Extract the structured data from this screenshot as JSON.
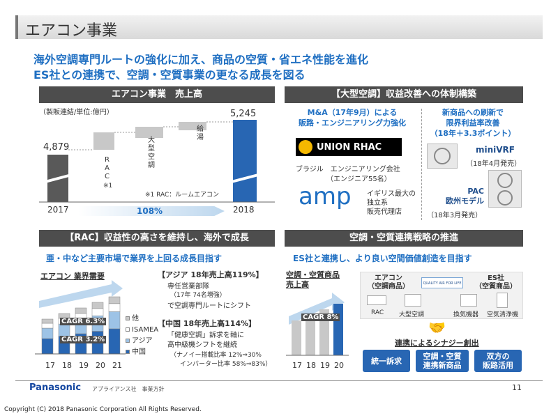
{
  "title": "エアコン事業",
  "headline": {
    "line1": "海外空調専門ルートの強化に加え、商品の空質・省エネ性能を進化",
    "line2": "ES社との連携で、空調・空質事業の更なる成長を図る"
  },
  "sales_panel": {
    "header": "エアコン事業　売上高",
    "unit": "（製販連結/単位:億円）",
    "labels": {
      "rac": "R\nA\nC",
      "rac_note_mark": "※1",
      "large": "大\n型\n空\n調",
      "kyuto": "給\n湯",
      "footnote": "※1 RAC：ルームエアコン",
      "growth": "108%"
    },
    "chart_data": {
      "type": "bar",
      "categories": [
        "2017",
        "2018"
      ],
      "values": [
        4879,
        5245
      ],
      "value_labels": [
        "4,879",
        "5,245"
      ],
      "colors": {
        "2017": "#595959",
        "2018": "#2866b3",
        "step": "#c8c8c8"
      }
    }
  },
  "large_ac_panel": {
    "header": "【大型空調】収益改善への体制構築",
    "ma_title": "M&A（17年9月）による\n販路・エンジニアリング力強化",
    "union_logo": "UNION RHAC",
    "union_desc": "ブラジル　エンジニアリング会社",
    "union_sub": "（エンジニア55名）",
    "amp_logo": "amp",
    "amp_desc": "イギリス最大の\n独立系\n販売代理店",
    "new_title": "新商品への刷新で\n限界利益率改善\n（18年＋3.3ポイント）",
    "minivrf": "miniVRF",
    "minivrf_date": "（18年4月発売）",
    "pac": "PAC\n欧州モデル",
    "pac_date": "（18年3月発売）"
  },
  "rac_panel": {
    "header": "【RAC】収益性の高さを維持し、海外で成長",
    "subtitle": "亜・中など主要市場で業界を上回る成長目指す",
    "demand_title": "エアコン 業界需要",
    "cagr1": "CAGR 6.3%",
    "cagr2": "CAGR 3.2%",
    "legend": [
      "他",
      "ISAMEA",
      "アジア",
      "中国"
    ],
    "legend_colors": [
      "#c8c8c8",
      "#ffffff",
      "#9dc3e6",
      "#2866b3"
    ],
    "chart_data": {
      "type": "bar",
      "categories": [
        "17",
        "18",
        "19",
        "20",
        "21"
      ]
    },
    "asia_title": "【アジア 18年売上高119%】",
    "asia_l1": "専任営業部隊",
    "asia_l2": "（17年 74名増強）",
    "asia_l3": "で空調専門ルートにシフト",
    "china_title": "【中国 18年売上高114%】",
    "china_l1": "「健康空調」訴求を軸に",
    "china_l2": "高中級機シフトを継続",
    "china_l3": "（ナノイー搭載比率 12%⇒30%",
    "china_l4": "インバーター比率 58%⇒83%）"
  },
  "strategy_panel": {
    "header": "空調・空質連携戦略の推進",
    "subtitle": "ES社と連携し、より良い空間価値創造を目指す",
    "sales_title": "空調・空質商品\n売上高",
    "cagr": "CAGR 8%",
    "chart_data": {
      "type": "bar",
      "categories": [
        "17",
        "18",
        "19",
        "20"
      ]
    },
    "aircon_box": "エアコン\n（空調商品）",
    "qa_logo": "QUALITY AIR FOR LIFE",
    "es_box": "ES社\n（空質商品）",
    "items": [
      "RAC",
      "大型空調",
      "換気機器",
      "空気清浄機"
    ],
    "synergy": "連携によるシナジー創出",
    "buttons": [
      "統一訴求",
      "空調・空質\n連携新商品",
      "双方の\n販路活用"
    ]
  },
  "footer": {
    "brand": "Panasonic",
    "sub": "アプライアンス社　事業方針",
    "page": "11",
    "copyright": "Copyright (C) 2018 Panasonic Corporation All Rights Reserved."
  }
}
